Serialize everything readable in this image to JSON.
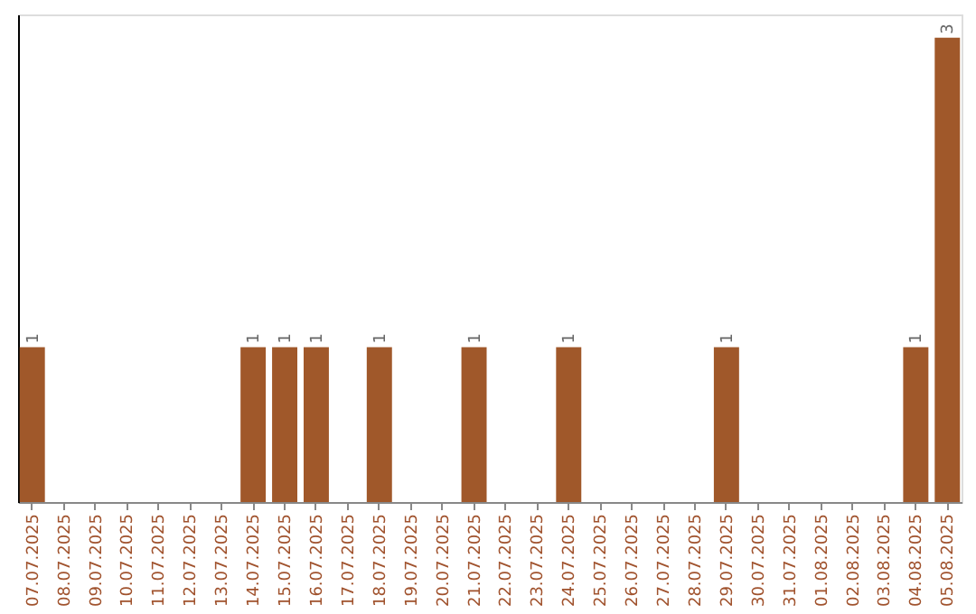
{
  "chart_data": {
    "type": "bar",
    "categories": [
      "07.07.2025",
      "08.07.2025",
      "09.07.2025",
      "10.07.2025",
      "11.07.2025",
      "12.07.2025",
      "13.07.2025",
      "14.07.2025",
      "15.07.2025",
      "16.07.2025",
      "17.07.2025",
      "18.07.2025",
      "19.07.2025",
      "20.07.2025",
      "21.07.2025",
      "22.07.2025",
      "23.07.2025",
      "24.07.2025",
      "25.07.2025",
      "26.07.2025",
      "27.07.2025",
      "28.07.2025",
      "29.07.2025",
      "30.07.2025",
      "31.07.2025",
      "01.08.2025",
      "02.08.2025",
      "03.08.2025",
      "04.08.2025",
      "05.08.2025"
    ],
    "values": [
      1,
      0,
      0,
      0,
      0,
      0,
      0,
      1,
      1,
      1,
      0,
      1,
      0,
      0,
      1,
      0,
      0,
      1,
      0,
      0,
      0,
      0,
      1,
      0,
      0,
      0,
      0,
      0,
      1,
      3
    ],
    "value_labels": [
      "1",
      null,
      null,
      null,
      null,
      null,
      null,
      "1",
      "1",
      "1",
      null,
      "1",
      null,
      null,
      "1",
      null,
      null,
      "1",
      null,
      null,
      null,
      null,
      "1",
      null,
      null,
      null,
      null,
      null,
      "1",
      "3"
    ],
    "color": "#a0582a",
    "ylim": [
      0,
      3.15
    ],
    "tick_labels": "x",
    "grid": false
  }
}
